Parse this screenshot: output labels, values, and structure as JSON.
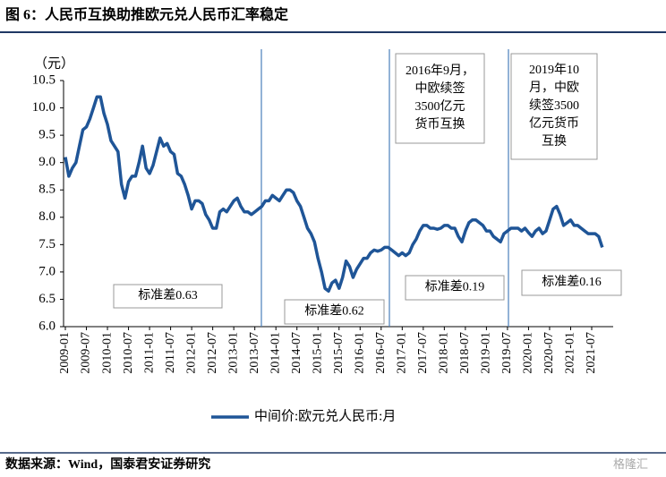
{
  "chart_data": {
    "type": "line",
    "title": "图 6：人民币互换助推欧元兑人民币汇率稳定",
    "y_unit": "（元）",
    "source": "数据来源：Wind，国泰君安证券研究",
    "watermark": "格隆汇",
    "categories": [
      "2009-01",
      null,
      null,
      null,
      null,
      null,
      "2009-07",
      null,
      null,
      null,
      null,
      null,
      "2010-01",
      null,
      null,
      null,
      null,
      null,
      "2010-07",
      null,
      null,
      null,
      null,
      null,
      "2011-01",
      null,
      null,
      null,
      null,
      null,
      "2011-07",
      null,
      null,
      null,
      null,
      null,
      "2012-01",
      null,
      null,
      null,
      null,
      null,
      "2012-07",
      null,
      null,
      null,
      null,
      null,
      "2013-01",
      null,
      null,
      null,
      null,
      null,
      "2013-07",
      null,
      null,
      null,
      null,
      null,
      "2014-01",
      null,
      null,
      null,
      null,
      null,
      "2014-07",
      null,
      null,
      null,
      null,
      null,
      "2015-01",
      null,
      null,
      null,
      null,
      null,
      "2015-07",
      null,
      null,
      null,
      null,
      null,
      "2016-01",
      null,
      null,
      null,
      null,
      null,
      "2016-07",
      null,
      null,
      null,
      null,
      null,
      "2017-01",
      null,
      null,
      null,
      null,
      null,
      "2017-07",
      null,
      null,
      null,
      null,
      null,
      "2018-01",
      null,
      null,
      null,
      null,
      null,
      "2018-07",
      null,
      null,
      null,
      null,
      null,
      "2019-01",
      null,
      null,
      null,
      null,
      null,
      "2019-07",
      null,
      null,
      null,
      null,
      null,
      "2020-01",
      null,
      null,
      null,
      null,
      null,
      "2020-07",
      null,
      null,
      null,
      null,
      null,
      "2021-01",
      null,
      null,
      null,
      null,
      null,
      "2021-07",
      null,
      null,
      null
    ],
    "series": [
      {
        "name": "中间价:欧元兑人民币:月",
        "color": "#1f5597",
        "values": [
          9.1,
          8.75,
          8.9,
          9.0,
          9.3,
          9.6,
          9.65,
          9.8,
          10.0,
          10.2,
          10.2,
          9.9,
          9.7,
          9.4,
          9.3,
          9.2,
          8.6,
          8.35,
          8.65,
          8.75,
          8.75,
          9.0,
          9.3,
          8.9,
          8.8,
          8.95,
          9.2,
          9.45,
          9.3,
          9.35,
          9.2,
          9.15,
          8.8,
          8.75,
          8.6,
          8.4,
          8.15,
          8.3,
          8.3,
          8.25,
          8.05,
          7.95,
          7.8,
          7.8,
          8.1,
          8.15,
          8.1,
          8.2,
          8.3,
          8.35,
          8.2,
          8.1,
          8.1,
          8.05,
          8.1,
          8.15,
          8.2,
          8.3,
          8.3,
          8.4,
          8.35,
          8.3,
          8.4,
          8.5,
          8.5,
          8.45,
          8.3,
          8.2,
          8.0,
          7.8,
          7.7,
          7.55,
          7.25,
          7.0,
          6.7,
          6.65,
          6.8,
          6.85,
          6.7,
          6.9,
          7.2,
          7.1,
          6.9,
          7.05,
          7.15,
          7.25,
          7.25,
          7.35,
          7.4,
          7.38,
          7.4,
          7.45,
          7.45,
          7.4,
          7.35,
          7.3,
          7.35,
          7.3,
          7.35,
          7.5,
          7.6,
          7.75,
          7.85,
          7.85,
          7.8,
          7.8,
          7.78,
          7.8,
          7.85,
          7.85,
          7.8,
          7.8,
          7.65,
          7.55,
          7.75,
          7.9,
          7.95,
          7.95,
          7.9,
          7.85,
          7.75,
          7.75,
          7.65,
          7.6,
          7.55,
          7.7,
          7.75,
          7.8,
          7.8,
          7.8,
          7.75,
          7.8,
          7.72,
          7.65,
          7.75,
          7.8,
          7.7,
          7.75,
          7.95,
          8.15,
          8.2,
          8.05,
          7.85,
          7.9,
          7.95,
          7.85,
          7.85,
          7.8,
          7.75,
          7.7,
          7.7,
          7.7,
          7.65,
          7.45
        ]
      }
    ],
    "ylim": [
      6,
      10.5
    ],
    "yticks": [
      {
        "value": 6,
        "label": "6.0"
      },
      6.5,
      {
        "value": 7,
        "label": "7.0"
      },
      7.5,
      {
        "value": 8,
        "label": "8.0"
      },
      8.5,
      {
        "value": 9,
        "label": "9.0"
      },
      9.5,
      {
        "value": 10,
        "label": "10.0"
      },
      10.5
    ],
    "annotations": [
      {
        "lines": [
          "标准差0.63"
        ]
      },
      {
        "lines": [
          "标准差0.62"
        ]
      },
      {
        "lines": [
          "标准差0.19"
        ]
      },
      {
        "lines": [
          "标准差0.16"
        ]
      },
      {
        "lines": [
          "2016年9月，",
          "中欧续签",
          "3500亿元",
          "货币互换"
        ]
      },
      {
        "lines": [
          "2019年10",
          "月，中欧",
          "续签3500",
          "亿元货币",
          "互换"
        ]
      }
    ]
  }
}
